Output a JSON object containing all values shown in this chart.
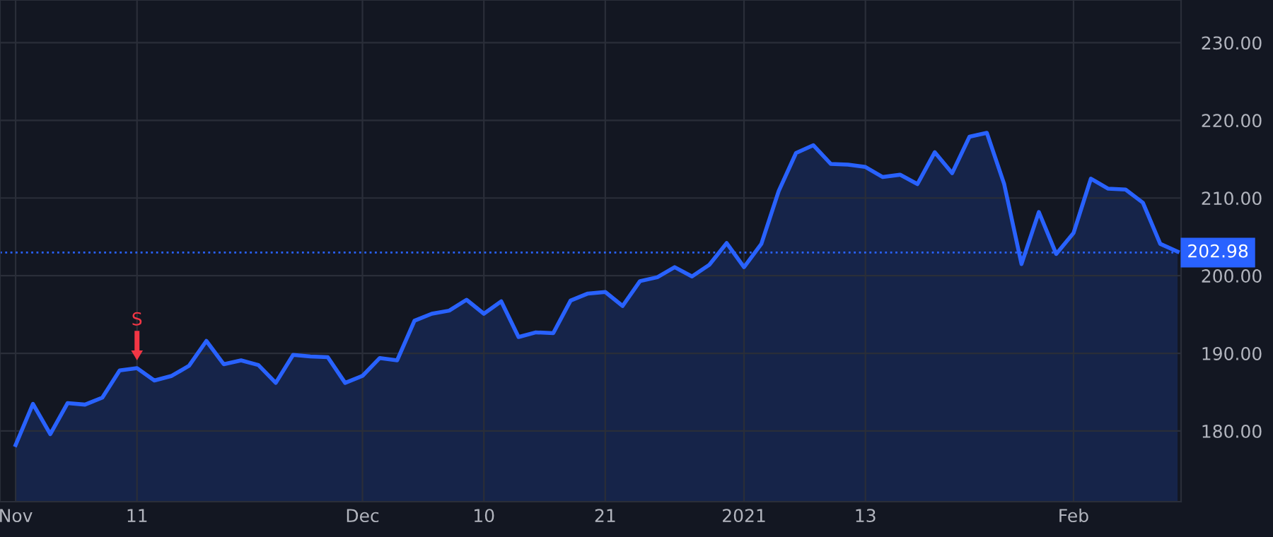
{
  "chart_data": {
    "type": "area",
    "categories": [
      "Nov",
      null,
      null,
      null,
      null,
      null,
      null,
      "11",
      null,
      null,
      null,
      null,
      null,
      null,
      null,
      null,
      null,
      null,
      null,
      null,
      "Dec",
      null,
      null,
      null,
      null,
      null,
      null,
      "10",
      null,
      null,
      null,
      null,
      null,
      null,
      "21",
      null,
      null,
      null,
      null,
      null,
      null,
      null,
      "2021",
      null,
      null,
      null,
      null,
      null,
      null,
      "13",
      null,
      null,
      null,
      null,
      null,
      null,
      null,
      null,
      null,
      null,
      null,
      "Feb",
      null,
      null,
      null,
      null,
      null,
      null
    ],
    "series": [
      {
        "color": "#2962ff",
        "values": [
          178.2,
          183.5,
          179.6,
          183.6,
          183.4,
          184.3,
          187.8,
          188.1,
          186.5,
          187.1,
          188.4,
          191.6,
          188.6,
          189.1,
          188.5,
          186.2,
          189.8,
          189.6,
          189.5,
          186.2,
          187.1,
          189.4,
          189.1,
          194.2,
          195.1,
          195.5,
          196.9,
          195.1,
          196.7,
          192.1,
          192.7,
          192.6,
          196.8,
          197.7,
          197.9,
          196.1,
          199.3,
          199.8,
          201.1,
          199.9,
          201.4,
          204.2,
          201.1,
          204.1,
          210.9,
          215.8,
          216.8,
          214.4,
          214.3,
          214.0,
          212.7,
          213.0,
          211.8,
          215.9,
          213.2,
          217.9,
          218.4,
          211.8,
          201.5,
          208.2,
          202.8,
          205.5,
          212.5,
          211.2,
          211.1,
          209.4,
          204.1,
          203.1
        ]
      }
    ],
    "ylim": [
      170.9,
      235.5
    ],
    "yticks": [
      {
        "value": 180,
        "label": "180.00"
      },
      {
        "value": 190,
        "label": "190.00"
      },
      {
        "value": 200,
        "label": "200.00"
      },
      {
        "value": 210,
        "label": "210.00"
      },
      {
        "value": 220,
        "label": "220.00"
      },
      {
        "value": 230,
        "label": "230.00"
      }
    ],
    "ref_lines": [
      {
        "axis": "y",
        "value": 202.98,
        "label": "202.98",
        "color": "#2962ff",
        "line_style": "dotted"
      }
    ],
    "annotations": [
      {
        "text": "S",
        "x": "11",
        "y": 188.1
      }
    ],
    "grid": true,
    "legend": false
  }
}
